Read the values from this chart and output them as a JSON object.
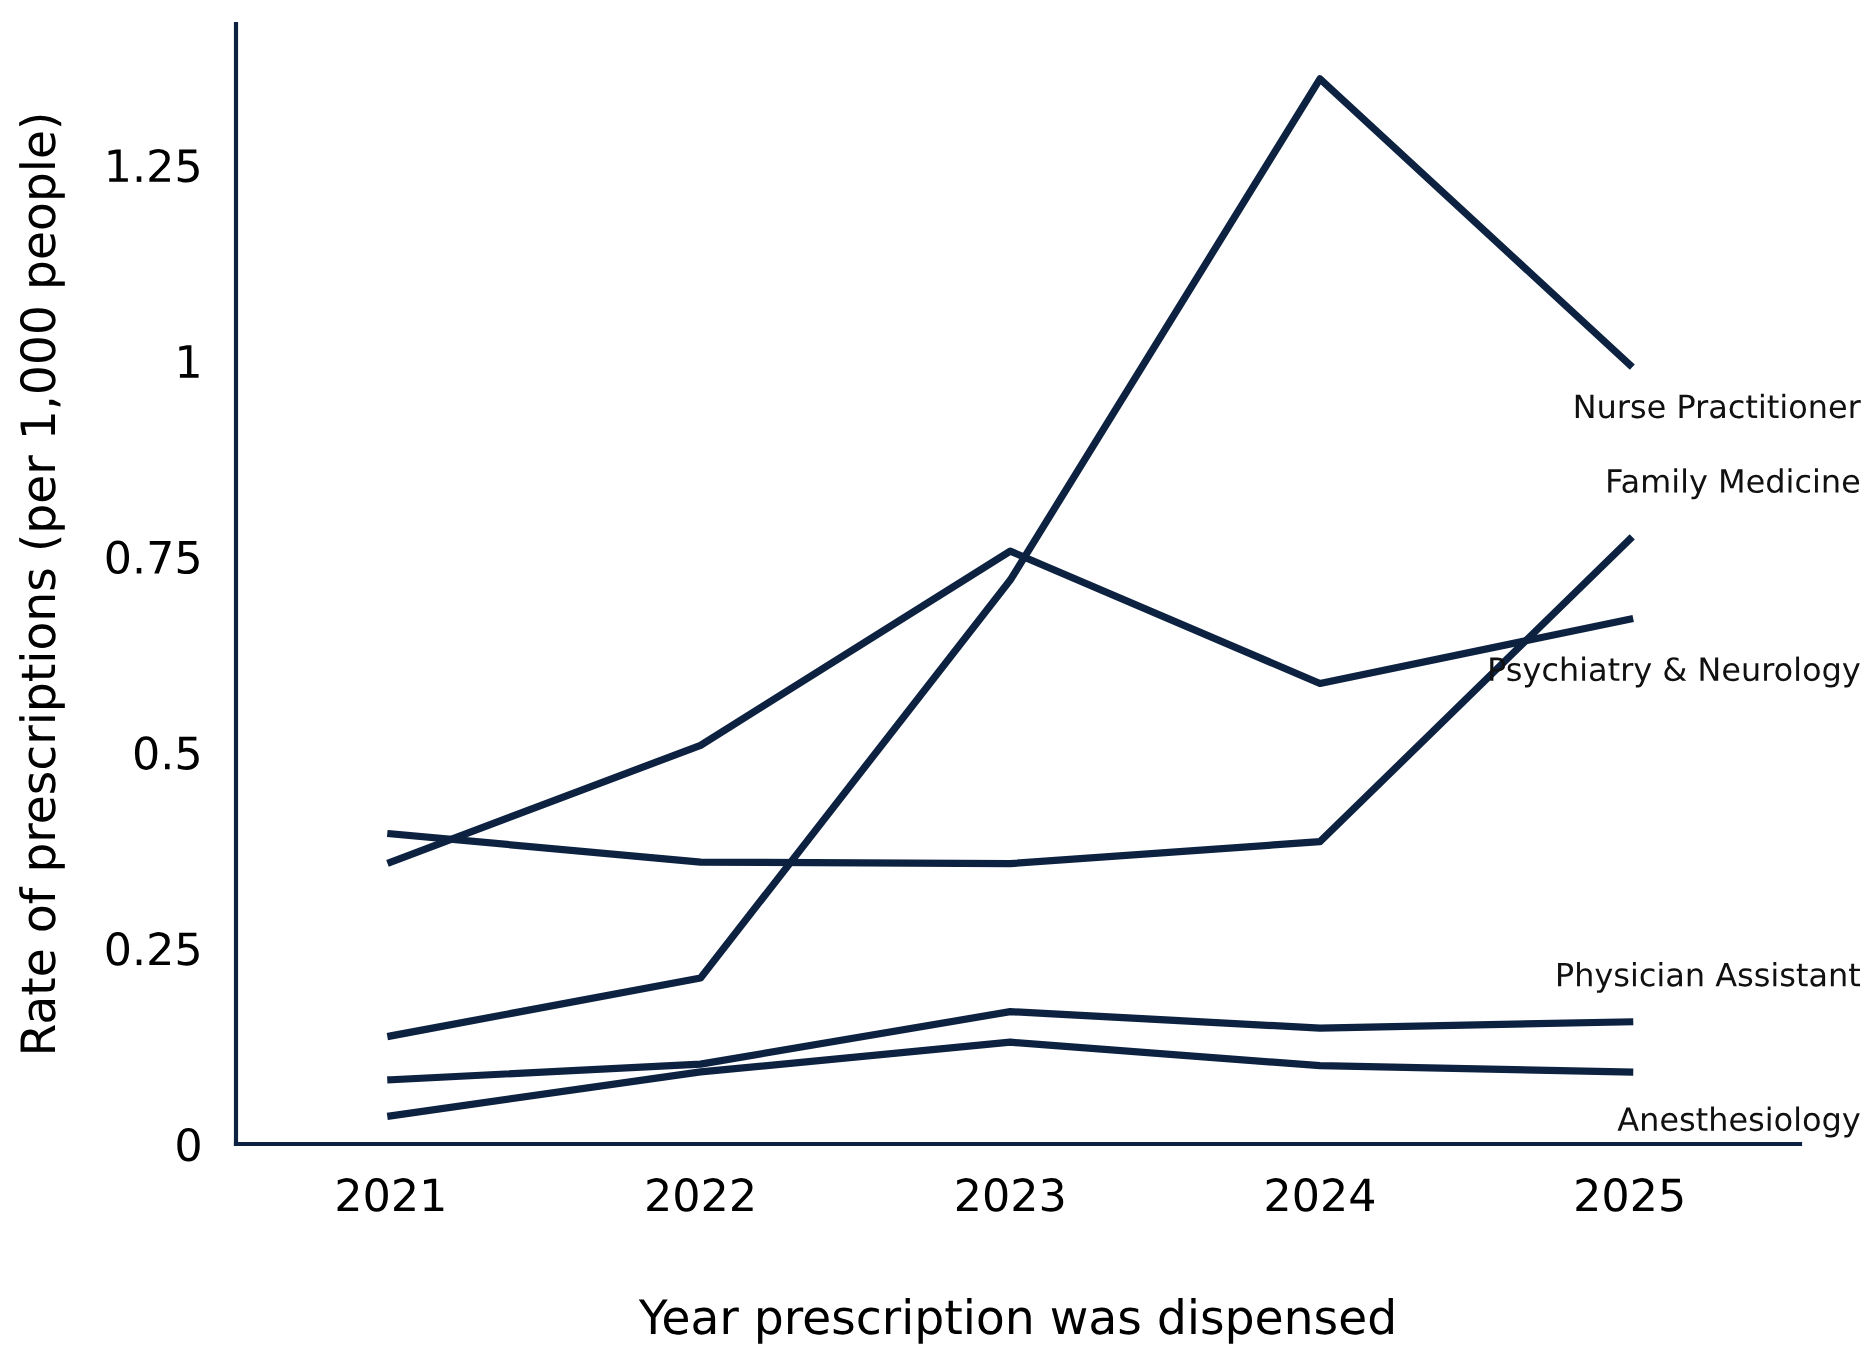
{
  "chart_data": {
    "type": "line",
    "xlabel": "Year prescription was dispensed",
    "ylabel": "Rate of prescriptions (per 1,000 people)",
    "x": [
      2021,
      2022,
      2023,
      2024,
      2025
    ],
    "xlim": [
      2020.5,
      2025.55
    ],
    "xticks": [
      2021,
      2022,
      2023,
      2024,
      2025
    ],
    "ylim": [
      0,
      1.43
    ],
    "yticks": [
      0,
      0.25,
      0.5,
      0.75,
      1,
      1.25
    ],
    "grid": false,
    "legend": false,
    "marker": "none",
    "line_style": "solid",
    "series": [
      {
        "name": "Nurse Practitioner",
        "color": "#0d2240",
        "values": [
          0.138,
          0.212,
          0.72,
          1.36,
          0.995
        ]
      },
      {
        "name": "Family Medicine",
        "color": "#0d2240",
        "values": [
          0.396,
          0.36,
          0.358,
          0.386,
          0.772
        ]
      },
      {
        "name": "Psychiatry & Neurology",
        "color": "#0d2240",
        "values": [
          0.36,
          0.509,
          0.757,
          0.588,
          0.67
        ]
      },
      {
        "name": "Physician Assistant",
        "color": "#0d2240",
        "values": [
          0.082,
          0.102,
          0.169,
          0.148,
          0.156
        ]
      },
      {
        "name": "Anesthesiology",
        "color": "#0d2240",
        "values": [
          0.036,
          0.092,
          0.13,
          0.1,
          0.092
        ]
      }
    ]
  }
}
